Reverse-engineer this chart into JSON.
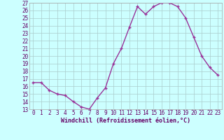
{
  "hours": [
    0,
    1,
    2,
    3,
    4,
    5,
    6,
    7,
    8,
    9,
    10,
    11,
    12,
    13,
    14,
    15,
    16,
    17,
    18,
    19,
    20,
    21,
    22,
    23
  ],
  "values": [
    16.5,
    16.5,
    15.5,
    15.0,
    14.8,
    14.0,
    13.3,
    13.0,
    14.5,
    15.8,
    19.0,
    21.0,
    23.8,
    26.5,
    25.5,
    26.5,
    27.0,
    27.0,
    26.5,
    25.0,
    22.5,
    20.0,
    18.5,
    17.5
  ],
  "line_color": "#993399",
  "marker": "+",
  "marker_size": 3.5,
  "marker_linewidth": 1.0,
  "bg_color": "#ccffff",
  "grid_color": "#aacccc",
  "xlabel": "Windchill (Refroidissement éolien,°C)",
  "xlabel_color": "#660066",
  "xlabel_fontsize": 6.0,
  "tick_color": "#660066",
  "tick_fontsize": 5.5,
  "ylim": [
    13,
    27
  ],
  "yticks": [
    13,
    14,
    15,
    16,
    17,
    18,
    19,
    20,
    21,
    22,
    23,
    24,
    25,
    26,
    27
  ],
  "xticks": [
    0,
    1,
    2,
    3,
    4,
    5,
    6,
    7,
    8,
    9,
    10,
    11,
    12,
    13,
    14,
    15,
    16,
    17,
    18,
    19,
    20,
    21,
    22,
    23
  ],
  "xtick_labels": [
    "0",
    "1",
    "2",
    "3",
    "4",
    "5",
    "6",
    "7",
    "8",
    "9",
    "10",
    "11",
    "12",
    "13",
    "14",
    "15",
    "16",
    "17",
    "18",
    "19",
    "20",
    "21",
    "22",
    "23"
  ],
  "spine_color": "#aaaaaa",
  "linewidth": 1.0
}
